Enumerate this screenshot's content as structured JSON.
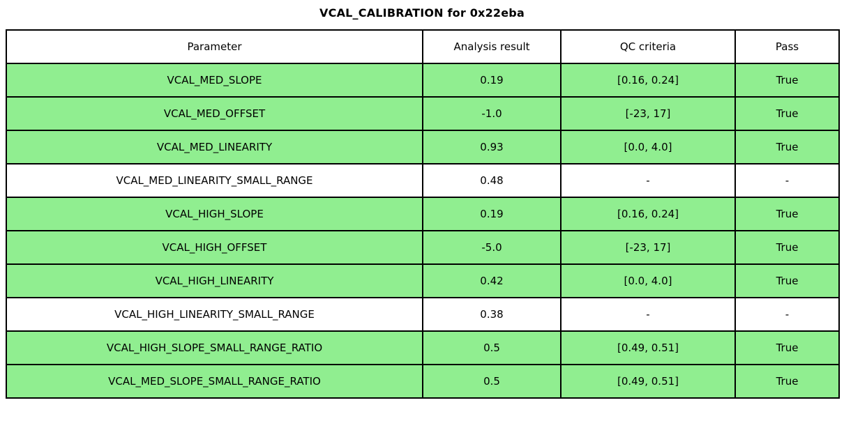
{
  "chart_data": {
    "type": "table",
    "title": "VCAL_CALIBRATION for 0x22eba",
    "columns": [
      "Parameter",
      "Analysis result",
      "QC criteria",
      "Pass"
    ],
    "rows": [
      {
        "parameter": "VCAL_MED_SLOPE",
        "result": "0.19",
        "qc": "[0.16, 0.24]",
        "pass": "True",
        "highlight": true
      },
      {
        "parameter": "VCAL_MED_OFFSET",
        "result": "-1.0",
        "qc": "[-23, 17]",
        "pass": "True",
        "highlight": true
      },
      {
        "parameter": "VCAL_MED_LINEARITY",
        "result": "0.93",
        "qc": "[0.0, 4.0]",
        "pass": "True",
        "highlight": true
      },
      {
        "parameter": "VCAL_MED_LINEARITY_SMALL_RANGE",
        "result": "0.48",
        "qc": "-",
        "pass": "-",
        "highlight": false
      },
      {
        "parameter": "VCAL_HIGH_SLOPE",
        "result": "0.19",
        "qc": "[0.16, 0.24]",
        "pass": "True",
        "highlight": true
      },
      {
        "parameter": "VCAL_HIGH_OFFSET",
        "result": "-5.0",
        "qc": "[-23, 17]",
        "pass": "True",
        "highlight": true
      },
      {
        "parameter": "VCAL_HIGH_LINEARITY",
        "result": "0.42",
        "qc": "[0.0, 4.0]",
        "pass": "True",
        "highlight": true
      },
      {
        "parameter": "VCAL_HIGH_LINEARITY_SMALL_RANGE",
        "result": "0.38",
        "qc": "-",
        "pass": "-",
        "highlight": false
      },
      {
        "parameter": "VCAL_HIGH_SLOPE_SMALL_RANGE_RATIO",
        "result": "0.5",
        "qc": "[0.49, 0.51]",
        "pass": "True",
        "highlight": true
      },
      {
        "parameter": "VCAL_MED_SLOPE_SMALL_RANGE_RATIO",
        "result": "0.5",
        "qc": "[0.49, 0.51]",
        "pass": "True",
        "highlight": true
      }
    ],
    "layout": {
      "legend": "none",
      "grid": "cell-borders"
    },
    "colors": {
      "pass_row_bg": "#90EE90",
      "neutral_row_bg": "#FFFFFF",
      "header_bg": "#FFFFFF",
      "border": "#000000",
      "text": "#000000"
    }
  }
}
